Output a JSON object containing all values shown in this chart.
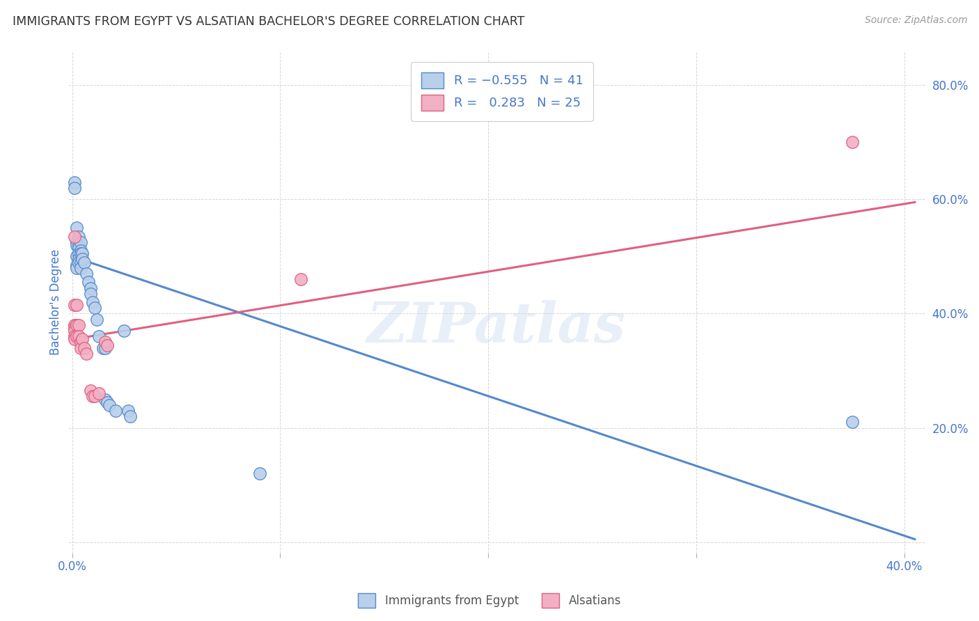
{
  "title": "IMMIGRANTS FROM EGYPT VS ALSATIAN BACHELOR'S DEGREE CORRELATION CHART",
  "source": "Source: ZipAtlas.com",
  "ylabel": "Bachelor's Degree",
  "xlim": [
    -0.002,
    0.41
  ],
  "ylim": [
    -0.02,
    0.86
  ],
  "x_ticks": [
    0.0,
    0.1,
    0.2,
    0.3,
    0.4
  ],
  "x_tick_labels": [
    "0.0%",
    "",
    "",
    "",
    "40.0%"
  ],
  "y_ticks": [
    0.0,
    0.2,
    0.4,
    0.6,
    0.8
  ],
  "y_tick_labels": [
    "",
    "20.0%",
    "40.0%",
    "60.0%",
    "80.0%"
  ],
  "color_blue": "#b8d0ea",
  "color_pink": "#f2b0c4",
  "edge_blue": "#5588cc",
  "edge_pink": "#e06080",
  "line_blue_color": "#5588cc",
  "line_pink_color": "#e06080",
  "watermark": "ZIPatlas",
  "blue_points": [
    [
      0.001,
      0.63
    ],
    [
      0.001,
      0.62
    ],
    [
      0.002,
      0.55
    ],
    [
      0.002,
      0.525
    ],
    [
      0.002,
      0.52
    ],
    [
      0.002,
      0.5
    ],
    [
      0.002,
      0.485
    ],
    [
      0.002,
      0.48
    ],
    [
      0.003,
      0.535
    ],
    [
      0.003,
      0.52
    ],
    [
      0.003,
      0.515
    ],
    [
      0.003,
      0.505
    ],
    [
      0.003,
      0.495
    ],
    [
      0.003,
      0.49
    ],
    [
      0.004,
      0.525
    ],
    [
      0.004,
      0.51
    ],
    [
      0.004,
      0.505
    ],
    [
      0.004,
      0.49
    ],
    [
      0.004,
      0.48
    ],
    [
      0.005,
      0.505
    ],
    [
      0.005,
      0.495
    ],
    [
      0.006,
      0.49
    ],
    [
      0.007,
      0.47
    ],
    [
      0.008,
      0.455
    ],
    [
      0.009,
      0.445
    ],
    [
      0.009,
      0.435
    ],
    [
      0.01,
      0.42
    ],
    [
      0.011,
      0.41
    ],
    [
      0.012,
      0.39
    ],
    [
      0.013,
      0.36
    ],
    [
      0.015,
      0.34
    ],
    [
      0.016,
      0.34
    ],
    [
      0.016,
      0.25
    ],
    [
      0.017,
      0.245
    ],
    [
      0.018,
      0.24
    ],
    [
      0.021,
      0.23
    ],
    [
      0.025,
      0.37
    ],
    [
      0.027,
      0.23
    ],
    [
      0.028,
      0.22
    ],
    [
      0.09,
      0.12
    ],
    [
      0.375,
      0.21
    ]
  ],
  "pink_points": [
    [
      0.001,
      0.535
    ],
    [
      0.001,
      0.415
    ],
    [
      0.001,
      0.38
    ],
    [
      0.001,
      0.375
    ],
    [
      0.001,
      0.37
    ],
    [
      0.001,
      0.36
    ],
    [
      0.001,
      0.355
    ],
    [
      0.002,
      0.415
    ],
    [
      0.002,
      0.38
    ],
    [
      0.002,
      0.36
    ],
    [
      0.003,
      0.38
    ],
    [
      0.003,
      0.36
    ],
    [
      0.004,
      0.35
    ],
    [
      0.004,
      0.34
    ],
    [
      0.005,
      0.355
    ],
    [
      0.006,
      0.34
    ],
    [
      0.007,
      0.33
    ],
    [
      0.009,
      0.265
    ],
    [
      0.01,
      0.255
    ],
    [
      0.011,
      0.255
    ],
    [
      0.013,
      0.26
    ],
    [
      0.016,
      0.35
    ],
    [
      0.017,
      0.345
    ],
    [
      0.11,
      0.46
    ],
    [
      0.375,
      0.7
    ]
  ],
  "blue_line": [
    [
      0.0,
      0.5
    ],
    [
      0.405,
      0.005
    ]
  ],
  "pink_line": [
    [
      0.0,
      0.355
    ],
    [
      0.405,
      0.595
    ]
  ]
}
